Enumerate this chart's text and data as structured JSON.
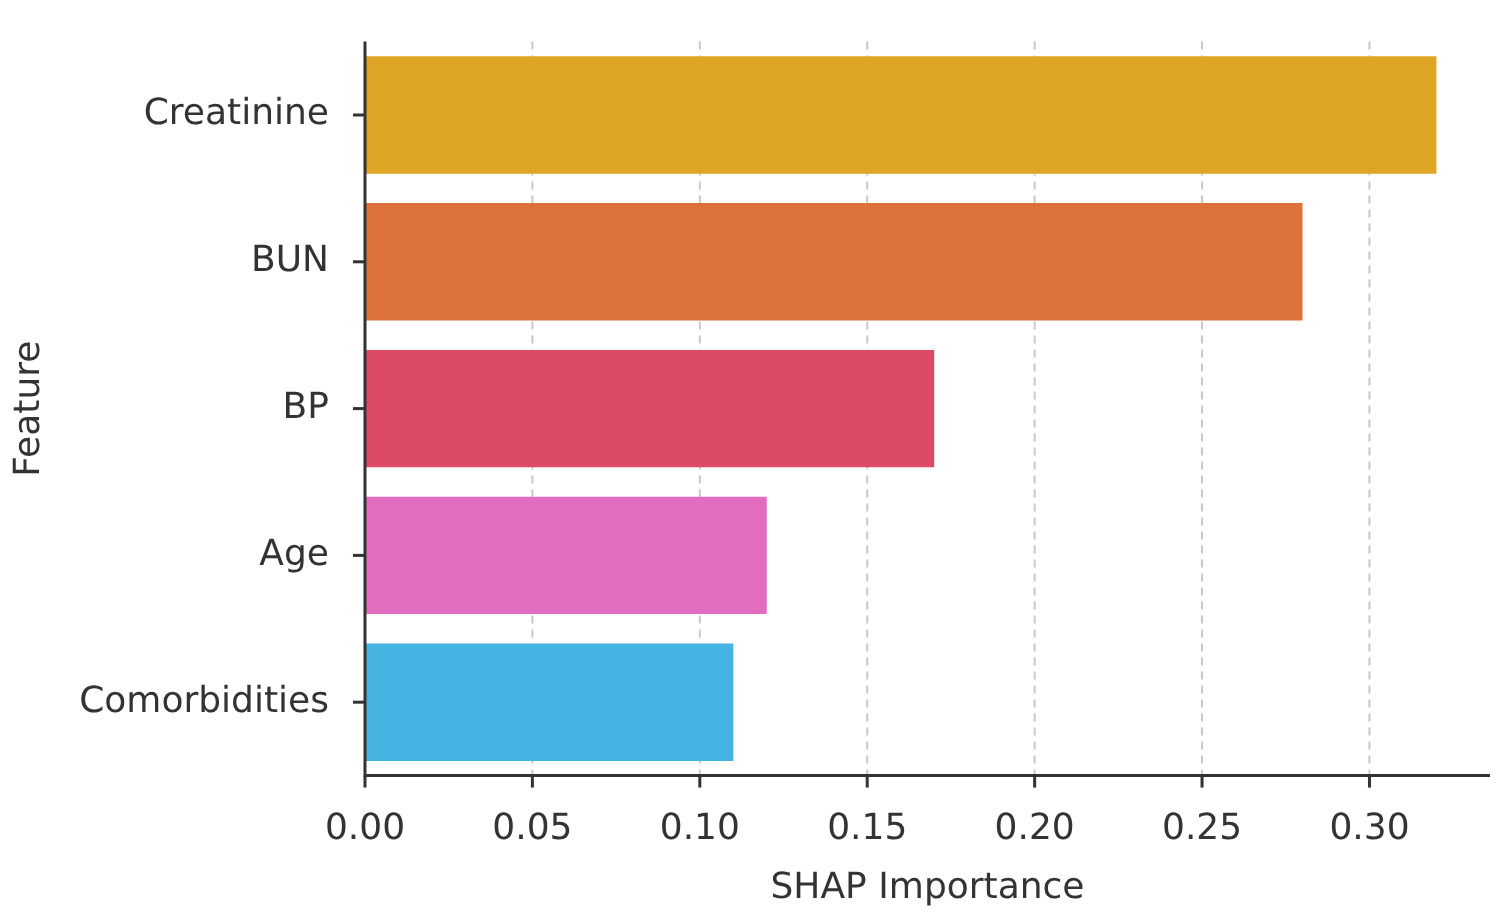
{
  "chart_data": {
    "type": "bar",
    "orientation": "horizontal",
    "xlabel": "SHAP Importance",
    "ylabel": "Feature",
    "categories": [
      "Creatinine",
      "BUN",
      "BP",
      "Age",
      "Comorbidities"
    ],
    "values": [
      0.32,
      0.28,
      0.17,
      0.12,
      0.11
    ],
    "colors": [
      "#dea423",
      "#dc713b",
      "#dd4a67",
      "#e26cbf",
      "#44b3e2"
    ],
    "xlim": [
      0,
      0.336
    ],
    "xticks": [
      {
        "value": 0,
        "label": "0.00"
      },
      0.05,
      {
        "value": 0.1,
        "label": "0.10"
      },
      0.15,
      {
        "value": 0.2,
        "label": "0.20"
      },
      0.25,
      {
        "value": 0.3,
        "label": "0.30"
      }
    ],
    "grid": "x",
    "legend": false
  }
}
